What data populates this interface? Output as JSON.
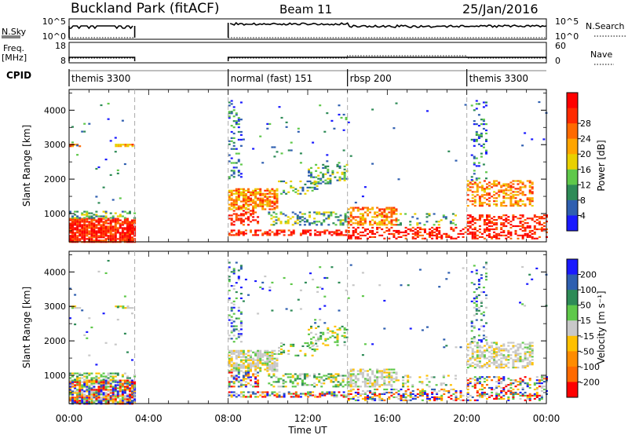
{
  "header": {
    "title": "Buckland Park (fitACF)",
    "beam": "Beam 11",
    "date": "25/Jan/2016"
  },
  "noise_panel": {
    "left_label": "N.Sky",
    "left_ticks": [
      "10^5",
      "10^0"
    ],
    "right_label": "N.Search",
    "right_ticks": [
      "10^5",
      "10^0"
    ]
  },
  "freq_panel": {
    "left_label_line1": "Freq.",
    "left_label_line2": "[MHz]",
    "left_ticks": [
      "18",
      "8"
    ],
    "right_label": "Nave",
    "right_ticks": [
      "60",
      "0"
    ]
  },
  "cpid": {
    "label": "CPID",
    "segments": [
      {
        "text": "themis 3300",
        "start_hour": 0.0
      },
      {
        "text": "normal (fast) 151",
        "start_hour": 8.0
      },
      {
        "text": "rbsp 200",
        "start_hour": 14.0
      },
      {
        "text": "themis 3300",
        "start_hour": 20.0
      }
    ]
  },
  "chart_data": [
    {
      "type": "heatmap",
      "name": "power",
      "ylabel": "Slant Range [km]",
      "yticks": [
        1000,
        2000,
        3000,
        4000
      ],
      "ylim": [
        180,
        4600
      ],
      "colorbar_label": "Power [dB]",
      "colorbar_ticks": [
        "4",
        "8",
        "12",
        "16",
        "20",
        "24",
        "28"
      ],
      "colorbar_colors": [
        "#1a1aff",
        "#2f5fb0",
        "#2e8b57",
        "#5fc84a",
        "#e8d000",
        "#ffa500",
        "#ff6a00",
        "#ff2a00",
        "#ff0000"
      ]
    },
    {
      "type": "heatmap",
      "name": "velocity",
      "ylabel": "Slant Range [km]",
      "yticks": [
        1000,
        2000,
        3000,
        4000
      ],
      "ylim": [
        180,
        4600
      ],
      "colorbar_label": "Velocity [m s⁻¹]",
      "colorbar_ticks": [
        "-200",
        "-100",
        "-50",
        "-15",
        "15",
        "50",
        "100",
        "200"
      ],
      "colorbar_colors": [
        "#ff0000",
        "#ff6a00",
        "#ff8c00",
        "#ffc000",
        "#c8c8c8",
        "#5fc84a",
        "#2e8b57",
        "#2f5fb0",
        "#1a1aff"
      ]
    }
  ],
  "xaxis": {
    "label": "Time UT",
    "ticks": [
      "00:00",
      "04:00",
      "08:00",
      "12:00",
      "16:00",
      "20:00",
      "00:00"
    ],
    "range_hours": [
      0,
      24
    ]
  },
  "data_gap_hours": [
    3.3,
    8.0
  ],
  "mode_change_hours": [
    3.3,
    8.0,
    14.0,
    20.0
  ]
}
